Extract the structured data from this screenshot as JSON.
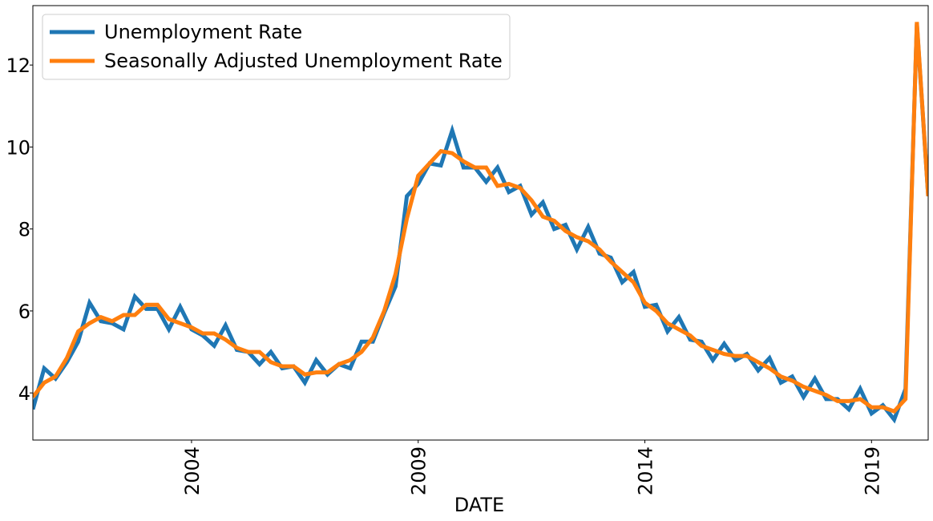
{
  "chart_data": {
    "type": "line",
    "title": "",
    "xlabel": "DATE",
    "ylabel": "",
    "xlim": [
      2000.5,
      2020.25
    ],
    "ylim": [
      2.85,
      13.45
    ],
    "x_ticks": [
      {
        "value": 2004.0,
        "label": "2004"
      },
      {
        "value": 2009.0,
        "label": "2009"
      },
      {
        "value": 2014.0,
        "label": "2014"
      },
      {
        "value": 2019.0,
        "label": "2019"
      }
    ],
    "y_ticks": [
      {
        "value": 4,
        "label": "4"
      },
      {
        "value": 6,
        "label": "6"
      },
      {
        "value": 8,
        "label": "8"
      },
      {
        "value": 10,
        "label": "10"
      },
      {
        "value": 12,
        "label": "12"
      }
    ],
    "grid": false,
    "legend_position": "top-left",
    "x": [
      2000.5,
      2000.75,
      2001.0,
      2001.25,
      2001.5,
      2001.75,
      2002.0,
      2002.25,
      2002.5,
      2002.75,
      2003.0,
      2003.25,
      2003.5,
      2003.75,
      2004.0,
      2004.25,
      2004.5,
      2004.75,
      2005.0,
      2005.25,
      2005.5,
      2005.75,
      2006.0,
      2006.25,
      2006.5,
      2006.75,
      2007.0,
      2007.25,
      2007.5,
      2007.75,
      2008.0,
      2008.25,
      2008.5,
      2008.75,
      2009.0,
      2009.25,
      2009.5,
      2009.75,
      2010.0,
      2010.25,
      2010.5,
      2010.75,
      2011.0,
      2011.25,
      2011.5,
      2011.75,
      2012.0,
      2012.25,
      2012.5,
      2012.75,
      2013.0,
      2013.25,
      2013.5,
      2013.75,
      2014.0,
      2014.25,
      2014.5,
      2014.75,
      2015.0,
      2015.25,
      2015.5,
      2015.75,
      2016.0,
      2016.25,
      2016.5,
      2016.75,
      2017.0,
      2017.25,
      2017.5,
      2017.75,
      2018.0,
      2018.25,
      2018.5,
      2018.75,
      2019.0,
      2019.25,
      2019.5,
      2019.75,
      2020.0,
      2020.25
    ],
    "series": [
      {
        "name": "Unemployment Rate",
        "color": "#1f77b4",
        "values": [
          3.6,
          4.6,
          4.35,
          4.75,
          5.25,
          6.2,
          5.75,
          5.7,
          5.55,
          6.35,
          6.05,
          6.05,
          5.55,
          6.1,
          5.55,
          5.4,
          5.15,
          5.65,
          5.05,
          5.0,
          4.7,
          5.0,
          4.6,
          4.65,
          4.25,
          4.8,
          4.45,
          4.7,
          4.6,
          5.25,
          5.25,
          5.95,
          6.6,
          8.8,
          9.1,
          9.6,
          9.55,
          10.4,
          9.5,
          9.5,
          9.15,
          9.5,
          8.9,
          9.05,
          8.35,
          8.65,
          8.0,
          8.1,
          7.5,
          8.05,
          7.4,
          7.3,
          6.7,
          6.95,
          6.1,
          6.15,
          5.5,
          5.85,
          5.3,
          5.25,
          4.8,
          5.2,
          4.8,
          4.95,
          4.55,
          4.85,
          4.25,
          4.4,
          3.9,
          4.35,
          3.85,
          3.85,
          3.6,
          4.1,
          3.5,
          3.7,
          3.35,
          4.1,
          13.0,
          8.8
        ]
      },
      {
        "name": "Seasonally Adjusted Unemployment Rate",
        "color": "#ff7f0e",
        "values": [
          3.9,
          4.25,
          4.4,
          4.85,
          5.5,
          5.7,
          5.85,
          5.75,
          5.9,
          5.9,
          6.15,
          6.15,
          5.8,
          5.7,
          5.6,
          5.45,
          5.45,
          5.3,
          5.1,
          5.0,
          5.0,
          4.75,
          4.65,
          4.65,
          4.45,
          4.5,
          4.5,
          4.7,
          4.8,
          5.0,
          5.35,
          6.0,
          6.9,
          8.25,
          9.3,
          9.6,
          9.9,
          9.85,
          9.65,
          9.5,
          9.5,
          9.05,
          9.1,
          9.0,
          8.7,
          8.3,
          8.2,
          7.95,
          7.8,
          7.7,
          7.5,
          7.2,
          6.95,
          6.7,
          6.2,
          6.0,
          5.7,
          5.55,
          5.4,
          5.15,
          5.05,
          4.95,
          4.9,
          4.9,
          4.75,
          4.6,
          4.4,
          4.3,
          4.15,
          4.05,
          3.95,
          3.8,
          3.8,
          3.85,
          3.65,
          3.65,
          3.55,
          3.85,
          13.05,
          8.8
        ]
      }
    ]
  }
}
